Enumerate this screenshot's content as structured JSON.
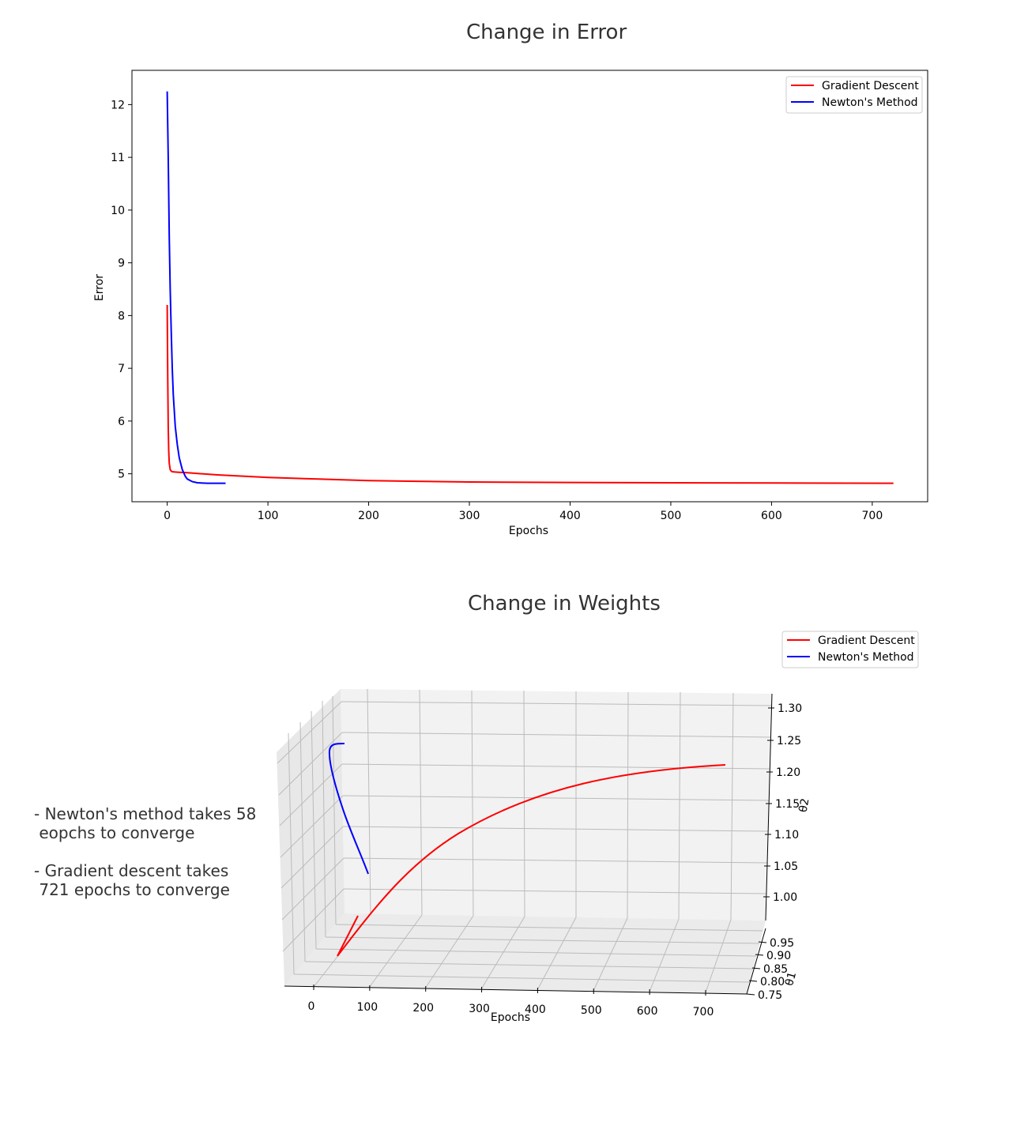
{
  "notes": {
    "line1": "- Newton's method takes 58",
    "line2": " eopchs to converge",
    "line3": "- Gradient descent takes",
    "line4": " 721 epochs to converge"
  },
  "chart_data": [
    {
      "type": "line",
      "title": "Change in Error",
      "xlabel": "Epochs",
      "ylabel": "Error",
      "xlim": [
        -35,
        755
      ],
      "ylim": [
        4.47,
        12.65
      ],
      "xticks": [
        0,
        100,
        200,
        300,
        400,
        500,
        600,
        700
      ],
      "yticks": [
        5,
        6,
        7,
        8,
        9,
        10,
        11,
        12
      ],
      "legend": "top-right",
      "grid": false,
      "series": [
        {
          "name": "Gradient Descent",
          "color": "#ff0000",
          "x": [
            0,
            0.5,
            1,
            1.5,
            2,
            3,
            4,
            5,
            7,
            10,
            20,
            50,
            100,
            150,
            200,
            300,
            400,
            500,
            600,
            721
          ],
          "y": [
            8.2,
            6.8,
            5.9,
            5.45,
            5.2,
            5.08,
            5.05,
            5.04,
            5.035,
            5.03,
            5.02,
            4.98,
            4.93,
            4.9,
            4.87,
            4.845,
            4.835,
            4.83,
            4.825,
            4.82
          ]
        },
        {
          "name": "Newton's Method",
          "color": "#0000ff",
          "x": [
            0,
            1,
            2,
            3,
            4,
            5,
            6,
            8,
            10,
            12,
            15,
            18,
            20,
            25,
            30,
            40,
            58
          ],
          "y": [
            12.25,
            11.0,
            9.5,
            8.5,
            7.7,
            7.0,
            6.5,
            5.9,
            5.55,
            5.3,
            5.08,
            4.95,
            4.9,
            4.85,
            4.83,
            4.82,
            4.82
          ]
        }
      ]
    },
    {
      "type": "line",
      "title": "Change in Weights",
      "xlabel": "Epochs",
      "ylabel": "θ1",
      "zlabel": "θ2",
      "xticks": [
        "0",
        "100",
        "200",
        "300",
        "400",
        "500",
        "600",
        "700"
      ],
      "yticks": [
        "0.75",
        "0.80",
        "0.85",
        "0.90",
        "0.95"
      ],
      "zticks": [
        "1.00",
        "1.05",
        "1.10",
        "1.15",
        "1.20",
        "1.25",
        "1.30"
      ],
      "legend": "top-right",
      "grid": true,
      "series": [
        {
          "name": "Gradient Descent",
          "color": "#ff0000"
        },
        {
          "name": "Newton's Method",
          "color": "#0000ff"
        }
      ]
    }
  ]
}
